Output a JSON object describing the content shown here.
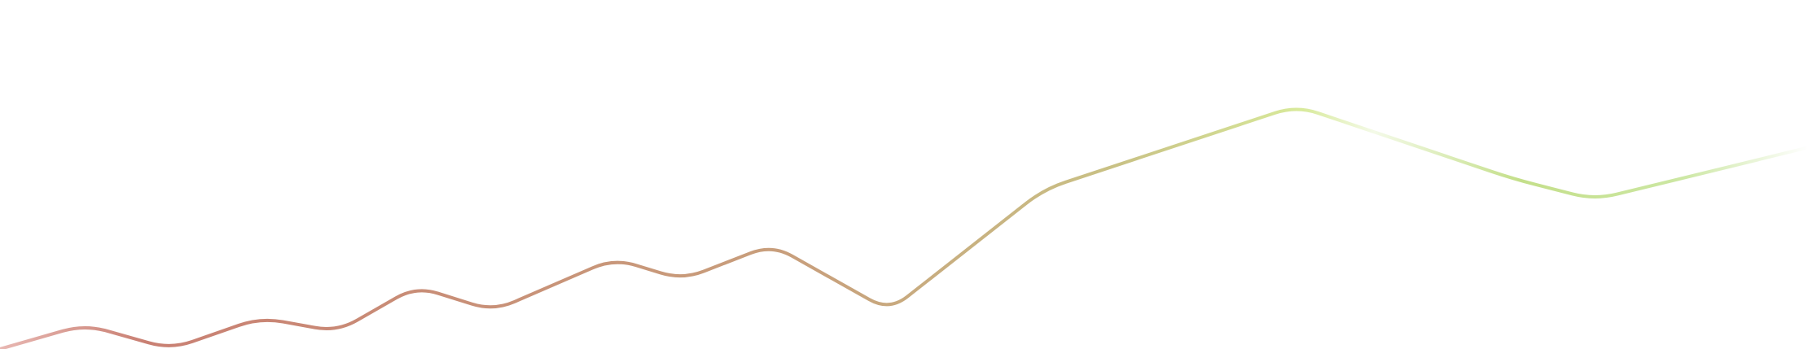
{
  "chart_data": {
    "type": "line",
    "title": "",
    "xlabel": "",
    "ylabel": "",
    "ylim": [
      0,
      100
    ],
    "grid": false,
    "legend": "none",
    "series": [
      {
        "x": [
          0,
          1,
          2,
          3,
          4,
          5,
          6,
          7,
          8,
          9,
          10,
          11,
          12,
          13,
          14,
          15
        ],
        "values": [
          0,
          7,
          0,
          9,
          5,
          18,
          11,
          26,
          20,
          30,
          11,
          46,
          70,
          49,
          43,
          58
        ],
        "curve": "rounded-polyline",
        "gradient_stops": [
          {
            "offset": 0.0,
            "color": "#e8b7b2"
          },
          {
            "offset": 0.08,
            "color": "#c98073"
          },
          {
            "offset": 0.45,
            "color": "#c8a07c"
          },
          {
            "offset": 0.62,
            "color": "#c9c285"
          },
          {
            "offset": 0.72,
            "color": "#d8ea9b"
          },
          {
            "offset": 0.76,
            "color": "#f4fae8"
          },
          {
            "offset": 0.84,
            "color": "#c4df8a"
          },
          {
            "offset": 0.93,
            "color": "#cce7a3"
          },
          {
            "offset": 1.0,
            "color": "#ffffff"
          }
        ]
      }
    ]
  }
}
